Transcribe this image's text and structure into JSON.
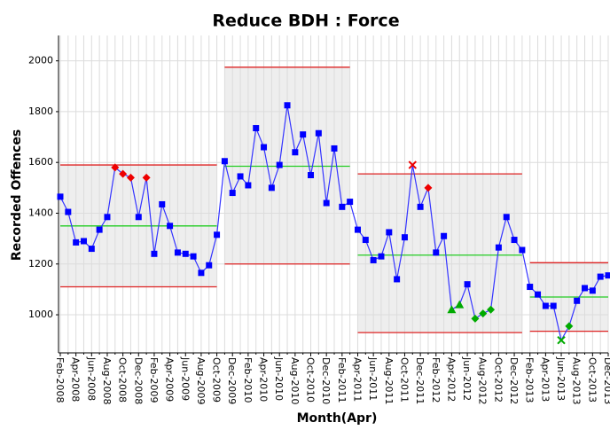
{
  "chart_data": {
    "type": "control",
    "title": "Reduce BDH : Force",
    "x_label": "Month(Apr)",
    "y_label": "Recorded Offences",
    "categories": [
      "Feb-2008",
      null,
      "Apr-2008",
      null,
      "Jun-2008",
      null,
      "Aug-2008",
      null,
      "Oct-2008",
      null,
      "Dec-2008",
      null,
      "Feb-2009",
      null,
      "Apr-2009",
      null,
      "Jun-2009",
      null,
      "Aug-2009",
      null,
      "Oct-2009",
      null,
      "Dec-2009",
      null,
      "Feb-2010",
      null,
      "Apr-2010",
      null,
      "Jun-2010",
      null,
      "Aug-2010",
      null,
      "Oct-2010",
      null,
      "Dec-2010",
      null,
      "Feb-2011",
      null,
      "Apr-2011",
      null,
      "Jun-2011",
      null,
      "Aug-2011",
      null,
      "Oct-2011",
      null,
      "Dec-2011",
      null,
      "Feb-2012",
      null,
      "Apr-2012",
      null,
      "Jun-2012",
      null,
      "Aug-2012",
      null,
      "Oct-2012",
      null,
      "Dec-2012",
      null,
      "Feb-2013",
      null,
      "Apr-2013",
      null,
      "Jun-2013",
      null,
      "Aug-2013",
      null,
      "Oct-2013",
      null,
      "Dec-2013"
    ],
    "values": [
      1465,
      1405,
      1285,
      1290,
      1260,
      1335,
      1385,
      1580,
      1555,
      1540,
      1385,
      1540,
      1240,
      1435,
      1350,
      1245,
      1240,
      1230,
      1165,
      1195,
      1315,
      1605,
      1480,
      1545,
      1510,
      1735,
      1660,
      1500,
      1590,
      1825,
      1640,
      1710,
      1550,
      1715,
      1440,
      1655,
      1425,
      1445,
      1335,
      1295,
      1215,
      1230,
      1325,
      1140,
      1305,
      1590,
      1425,
      1500,
      1245,
      1310,
      1020,
      1040,
      1120,
      985,
      1005,
      1020,
      1265,
      1385,
      1295,
      1255,
      1110,
      1080,
      1035,
      1035,
      900,
      955,
      1055,
      1105,
      1095,
      1150,
      1155
    ],
    "markers": [
      "square",
      "square",
      "square",
      "square",
      "square",
      "square",
      "square",
      "diamond",
      "diamond",
      "diamond",
      "square",
      "diamond",
      "square",
      "square",
      "square",
      "square",
      "square",
      "square",
      "square",
      "square",
      "square",
      "square",
      "square",
      "square",
      "square",
      "square",
      "square",
      "square",
      "square",
      "square",
      "square",
      "square",
      "square",
      "square",
      "square",
      "square",
      "square",
      "square",
      "square",
      "square",
      "square",
      "square",
      "square",
      "square",
      "square",
      "x",
      "square",
      "diamond",
      "square",
      "square",
      "triangle",
      "triangle",
      "square",
      "diamond",
      "diamond",
      "diamond",
      "square",
      "square",
      "square",
      "square",
      "square",
      "square",
      "square",
      "square",
      "x",
      "diamond",
      "square",
      "square",
      "square",
      "square",
      "square"
    ],
    "marker_colors": [
      "#0000ff",
      "#0000ff",
      "#0000ff",
      "#0000ff",
      "#0000ff",
      "#0000ff",
      "#0000ff",
      "#ee0000",
      "#ee0000",
      "#ee0000",
      "#0000ff",
      "#ee0000",
      "#0000ff",
      "#0000ff",
      "#0000ff",
      "#0000ff",
      "#0000ff",
      "#0000ff",
      "#0000ff",
      "#0000ff",
      "#0000ff",
      "#0000ff",
      "#0000ff",
      "#0000ff",
      "#0000ff",
      "#0000ff",
      "#0000ff",
      "#0000ff",
      "#0000ff",
      "#0000ff",
      "#0000ff",
      "#0000ff",
      "#0000ff",
      "#0000ff",
      "#0000ff",
      "#0000ff",
      "#0000ff",
      "#0000ff",
      "#0000ff",
      "#0000ff",
      "#0000ff",
      "#0000ff",
      "#0000ff",
      "#0000ff",
      "#0000ff",
      "#ee0000",
      "#0000ff",
      "#ee0000",
      "#0000ff",
      "#0000ff",
      "#00aa00",
      "#00aa00",
      "#0000ff",
      "#00aa00",
      "#00aa00",
      "#00aa00",
      "#0000ff",
      "#0000ff",
      "#0000ff",
      "#0000ff",
      "#0000ff",
      "#0000ff",
      "#0000ff",
      "#0000ff",
      "#00aa00",
      "#00aa00",
      "#0000ff",
      "#0000ff",
      "#0000ff",
      "#0000ff",
      "#0000ff"
    ],
    "line_color": "#3333ff",
    "phases": [
      {
        "start": 0,
        "end": 20,
        "ucl": 1590,
        "mean": 1350,
        "lcl": 1110
      },
      {
        "start": 21,
        "end": 37,
        "ucl": 1975,
        "mean": 1585,
        "lcl": 1200
      },
      {
        "start": 38,
        "end": 59,
        "ucl": 1555,
        "mean": 1235,
        "lcl": 930
      },
      {
        "start": 60,
        "end": 70,
        "ucl": 1205,
        "mean": 1070,
        "lcl": 935
      }
    ],
    "limit_color": "#dd2222",
    "mean_color": "#22cc22",
    "ylim": [
      850,
      2100
    ],
    "yticks": [
      1000,
      1200,
      1400,
      1600,
      1800,
      2000
    ],
    "grid": true
  }
}
